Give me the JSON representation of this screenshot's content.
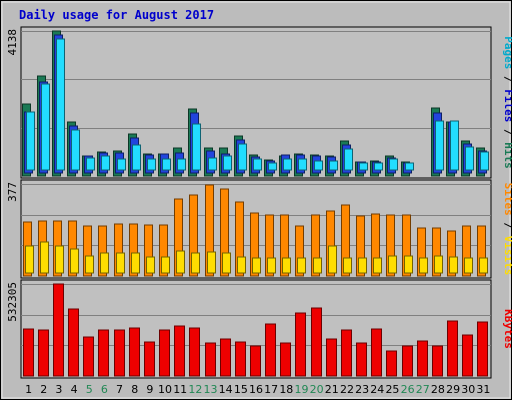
{
  "chart_data": {
    "type": "bar",
    "title": "Daily usage for August 2017",
    "categories": [
      "1",
      "2",
      "3",
      "4",
      "5",
      "6",
      "7",
      "8",
      "9",
      "10",
      "11",
      "12",
      "13",
      "14",
      "15",
      "16",
      "17",
      "18",
      "19",
      "20",
      "21",
      "22",
      "23",
      "24",
      "25",
      "26",
      "27",
      "28",
      "29",
      "30",
      "31"
    ],
    "weekend_days": [
      "5",
      "6",
      "12",
      "13",
      "19",
      "20",
      "26",
      "27"
    ],
    "colors": {
      "hits": "#1a7a55",
      "files": "#2244dd",
      "pages": "#22ddff",
      "visits": "#ff8800",
      "sites": "#ffdd00",
      "kbytes": "#ee0000",
      "weekday_label": "#000000",
      "weekend_label": "#228855",
      "panel_bg": "#c0c0c0",
      "title": "#0000cc"
    },
    "panels": [
      {
        "id": "top",
        "ymax_label": "4138",
        "label_parts": [
          {
            "text": "Pages",
            "color": "#00aacc"
          },
          {
            "text": " / ",
            "color": "#000000"
          },
          {
            "text": "Files",
            "color": "#0000cc"
          },
          {
            "text": " / ",
            "color": "#000000"
          },
          {
            "text": "Hits",
            "color": "#1a7a55"
          }
        ],
        "ymax": 4138,
        "series": [
          {
            "name": "Hits",
            "color": "#1a7a55",
            "values": [
              2050,
              2850,
              4138,
              1550,
              580,
              680,
              720,
              1200,
              620,
              630,
              800,
              1900,
              800,
              800,
              1150,
              600,
              450,
              560,
              620,
              600,
              560,
              1000,
              410,
              420,
              560,
              400,
              0,
              1950,
              1550,
              1000,
              800
            ]
          },
          {
            "name": "Files",
            "color": "#2244dd",
            "values": [
              1750,
              2600,
              3950,
              1350,
              480,
              580,
              580,
              1000,
              500,
              540,
              560,
              1700,
              640,
              530,
              950,
              450,
              340,
              500,
              500,
              480,
              450,
              800,
              320,
              320,
              420,
              290,
              0,
              1700,
              1450,
              820,
              640
            ]
          },
          {
            "name": "Pages",
            "color": "#22ddff",
            "values": [
              1650,
              2450,
              3750,
              1150,
              330,
              400,
              300,
              700,
              300,
              300,
              320,
              1300,
              350,
              400,
              730,
              300,
              200,
              300,
              300,
              250,
              250,
              600,
              200,
              200,
              300,
              200,
              0,
              1400,
              1400,
              650,
              500
            ]
          }
        ]
      },
      {
        "id": "middle",
        "ymax_label": "377",
        "label_parts": [
          {
            "text": "Sites",
            "color": "#ff8800"
          },
          {
            "text": " / ",
            "color": "#000000"
          },
          {
            "text": "Visits",
            "color": "#ffdd00"
          }
        ],
        "ymax": 377,
        "series": [
          {
            "name": "Visits",
            "color": "#ff8800",
            "values": [
              220,
              225,
              225,
              225,
              205,
              205,
              215,
              215,
              210,
              210,
              315,
              330,
              372,
              357,
              305,
              260,
              250,
              250,
              205,
              250,
              265,
              290,
              245,
              255,
              250,
              250,
              195,
              195,
              185,
              205,
              205
            ]
          },
          {
            "name": "Sites",
            "color": "#ffdd00",
            "values": [
              110,
              125,
              110,
              100,
              70,
              80,
              80,
              80,
              65,
              65,
              90,
              80,
              85,
              80,
              65,
              60,
              60,
              60,
              60,
              60,
              110,
              60,
              60,
              60,
              70,
              70,
              60,
              70,
              65,
              60,
              60
            ]
          }
        ]
      },
      {
        "id": "bottom",
        "ymax_label": "532305",
        "label_parts": [
          {
            "text": "KBytes",
            "color": "#ee0000"
          }
        ],
        "ymax": 532305,
        "series": [
          {
            "name": "KBytes",
            "color": "#ee0000",
            "values": [
              270000,
              264000,
              532305,
              390000,
              223000,
              265000,
              265000,
              280000,
              196000,
              264000,
              289000,
              280000,
              193000,
              215000,
              194000,
              175000,
              300000,
              190000,
              362000,
              395000,
              212000,
              265000,
              189000,
              270000,
              143000,
              173000,
              200000,
              175000,
              320000,
              240000,
              310000
            ]
          }
        ]
      }
    ]
  }
}
